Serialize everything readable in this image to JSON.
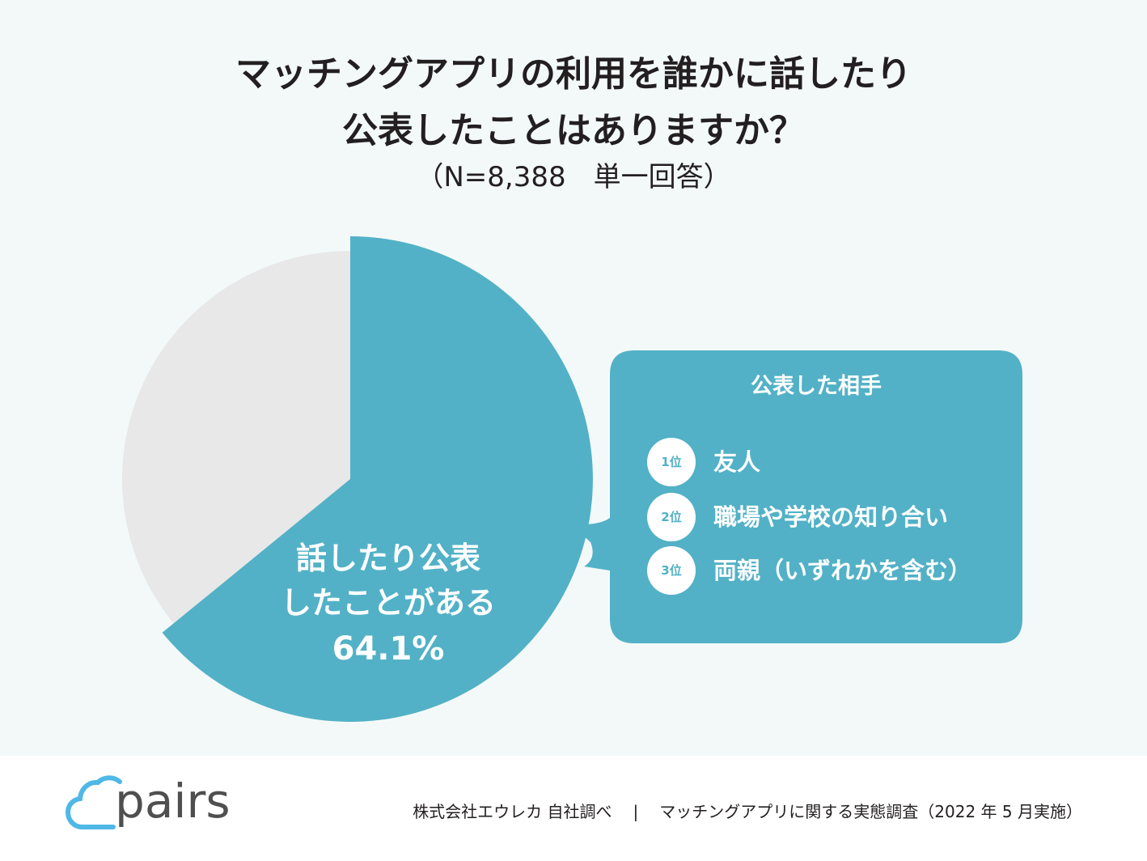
{
  "header": {
    "title_line1": "マッチングアプリの利用を誰かに話したり",
    "title_line2": "公表したことはありますか？",
    "subtitle": "（N=8,388　単一回答）"
  },
  "chart_data": {
    "type": "pie",
    "title": "マッチングアプリの利用を誰かに話したり公表したことはありますか？",
    "subtitle": "（N=8,388　単一回答）",
    "slices": [
      {
        "label_line1": "話したり公表",
        "label_line2": "したことがある",
        "value": 64.1,
        "value_label": "64.1%",
        "color": "#52b1c6"
      },
      {
        "label_line1": "",
        "label_line2": "",
        "value": 35.9,
        "value_label": "",
        "color": "#e8e8e8"
      }
    ],
    "start_angle_deg": 0,
    "direction": "clockwise"
  },
  "callout": {
    "title": "公表した相手",
    "color": "#52b1c6",
    "ranks": [
      {
        "badge": "1位",
        "text": "友人"
      },
      {
        "badge": "2位",
        "text": "職場や学校の知り合い"
      },
      {
        "badge": "3位",
        "text": "両親（いずれかを含む）"
      }
    ]
  },
  "footer": {
    "logo_text": "pairs",
    "logo_color": "#4fb8e6",
    "source": "株式会社エウレカ 自社調べ",
    "separator": "|",
    "survey": "マッチングアプリに関する実態調査（2022 年 5 月実施）"
  }
}
